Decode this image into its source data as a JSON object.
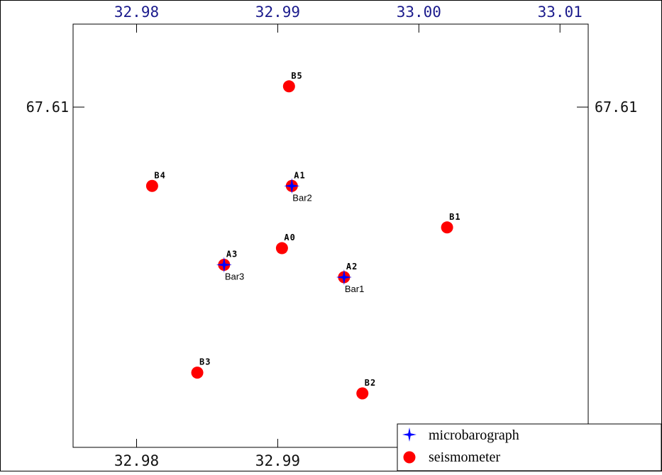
{
  "chart_data": {
    "type": "scatter",
    "x_axis": {
      "range": [
        32.9755,
        33.012
      ],
      "top_ticks": [
        {
          "value": 32.98,
          "label": "32.98"
        },
        {
          "value": 32.99,
          "label": "32.99"
        },
        {
          "value": 33.0,
          "label": "33.00"
        },
        {
          "value": 33.01,
          "label": "33.01"
        }
      ],
      "bottom_ticks": [
        {
          "value": 32.98,
          "label": "32.98"
        },
        {
          "value": 32.99,
          "label": "32.99"
        }
      ]
    },
    "y_axis": {
      "range": [
        67.5994,
        67.6096
      ],
      "ticks": [
        {
          "value": 67.6076,
          "label": "67.61"
        }
      ]
    },
    "seismometers": [
      {
        "name": "B5",
        "x": 32.9908,
        "y": 67.6081
      },
      {
        "name": "B4",
        "x": 32.9811,
        "y": 67.6057
      },
      {
        "name": "A1",
        "x": 32.991,
        "y": 67.6057
      },
      {
        "name": "B1",
        "x": 33.002,
        "y": 67.6047
      },
      {
        "name": "A0",
        "x": 32.9903,
        "y": 67.6042
      },
      {
        "name": "A3",
        "x": 32.9862,
        "y": 67.6038
      },
      {
        "name": "A2",
        "x": 32.9947,
        "y": 67.6035
      },
      {
        "name": "B3",
        "x": 32.9843,
        "y": 67.6012
      },
      {
        "name": "B2",
        "x": 32.996,
        "y": 67.6007
      }
    ],
    "microbarographs": [
      {
        "name": "Bar2",
        "x": 32.991,
        "y": 67.6057
      },
      {
        "name": "Bar3",
        "x": 32.9862,
        "y": 67.6038
      },
      {
        "name": "Bar1",
        "x": 32.9947,
        "y": 67.6035
      }
    ],
    "legend": {
      "placement": "bottom-right",
      "entries": [
        {
          "label": "microbarograph",
          "color": "#0000ff",
          "icon": "four-point-star-icon"
        },
        {
          "label": "seismometer",
          "color": "#ff0000",
          "icon": "circle-icon"
        }
      ]
    },
    "colors": {
      "seismometer": "#ff0000",
      "microbarograph": "#0000ff",
      "top_tick_labels": "#1a1a8c",
      "frame": "#000000"
    }
  }
}
